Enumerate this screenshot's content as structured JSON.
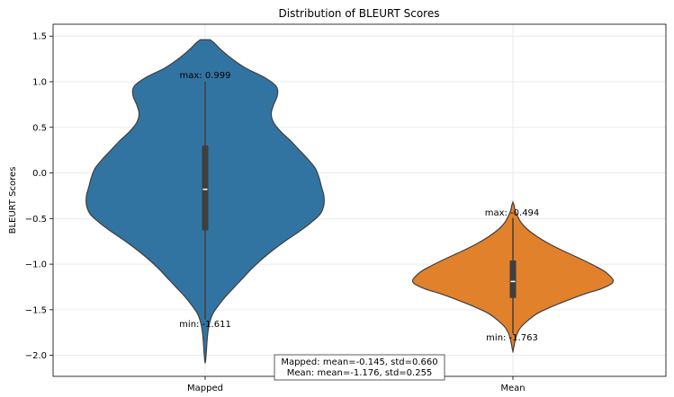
{
  "chart_data": {
    "type": "violin",
    "title": "Distribution of BLEURT Scores",
    "xlabel": "",
    "ylabel": "BLEURT Scores",
    "ylim": [
      -2.23,
      1.63
    ],
    "yticks": [
      -2.0,
      -1.5,
      -1.0,
      -0.5,
      0.0,
      0.5,
      1.0,
      1.5
    ],
    "ytick_labels": [
      "−2.0",
      "−1.5",
      "−1.0",
      "−0.5",
      "0.0",
      "0.5",
      "1.0",
      "1.5"
    ],
    "grid": true,
    "categories": [
      "Mapped",
      "Mean"
    ],
    "series": [
      {
        "name": "Mapped",
        "color": "#3274a1",
        "mean": -0.145,
        "std": 0.66,
        "min": -1.611,
        "max": 0.999,
        "median": -0.18,
        "q1": -0.63,
        "q3": 0.3,
        "kde_extent": [
          -2.08,
          1.46
        ],
        "density_profile": [
          [
            1.46,
            0.04
          ],
          [
            1.43,
            0.07
          ],
          [
            1.35,
            0.13
          ],
          [
            1.25,
            0.22
          ],
          [
            1.15,
            0.33
          ],
          [
            1.05,
            0.48
          ],
          [
            0.95,
            0.58
          ],
          [
            0.85,
            0.59
          ],
          [
            0.75,
            0.56
          ],
          [
            0.65,
            0.54
          ],
          [
            0.55,
            0.56
          ],
          [
            0.45,
            0.62
          ],
          [
            0.35,
            0.7
          ],
          [
            0.25,
            0.77
          ],
          [
            0.15,
            0.84
          ],
          [
            0.05,
            0.9
          ],
          [
            -0.05,
            0.93
          ],
          [
            -0.15,
            0.95
          ],
          [
            -0.25,
            0.97
          ],
          [
            -0.35,
            0.97
          ],
          [
            -0.45,
            0.94
          ],
          [
            -0.55,
            0.86
          ],
          [
            -0.65,
            0.76
          ],
          [
            -0.75,
            0.65
          ],
          [
            -0.85,
            0.55
          ],
          [
            -0.95,
            0.46
          ],
          [
            -1.05,
            0.38
          ],
          [
            -1.15,
            0.31
          ],
          [
            -1.25,
            0.24
          ],
          [
            -1.35,
            0.17
          ],
          [
            -1.45,
            0.11
          ],
          [
            -1.55,
            0.06
          ],
          [
            -1.65,
            0.035
          ],
          [
            -1.75,
            0.022
          ],
          [
            -1.85,
            0.015
          ],
          [
            -1.95,
            0.01
          ],
          [
            -2.05,
            0.004
          ],
          [
            -2.08,
            0.0
          ]
        ]
      },
      {
        "name": "Mean",
        "color": "#e1812c",
        "mean": -1.176,
        "std": 0.255,
        "min": -1.763,
        "max": -0.494,
        "median": -1.19,
        "q1": -1.37,
        "q3": -0.96,
        "kde_extent": [
          -1.96,
          -0.32
        ],
        "density_profile": [
          [
            -0.32,
            0.0
          ],
          [
            -0.36,
            0.01
          ],
          [
            -0.42,
            0.02
          ],
          [
            -0.48,
            0.04
          ],
          [
            -0.55,
            0.07
          ],
          [
            -0.62,
            0.12
          ],
          [
            -0.7,
            0.2
          ],
          [
            -0.78,
            0.3
          ],
          [
            -0.86,
            0.42
          ],
          [
            -0.94,
            0.55
          ],
          [
            -1.02,
            0.67
          ],
          [
            -1.08,
            0.75
          ],
          [
            -1.14,
            0.8
          ],
          [
            -1.18,
            0.82
          ],
          [
            -1.22,
            0.8
          ],
          [
            -1.27,
            0.72
          ],
          [
            -1.33,
            0.58
          ],
          [
            -1.4,
            0.44
          ],
          [
            -1.47,
            0.31
          ],
          [
            -1.54,
            0.2
          ],
          [
            -1.62,
            0.12
          ],
          [
            -1.7,
            0.06
          ],
          [
            -1.78,
            0.03
          ],
          [
            -1.86,
            0.015
          ],
          [
            -1.92,
            0.006
          ],
          [
            -1.96,
            0.0
          ]
        ]
      }
    ],
    "annotations": {
      "Mapped": {
        "max_label": "max: 0.999",
        "min_label": "min: -1.611"
      },
      "Mean": {
        "max_label": "max: -0.494",
        "min_label": "min: -1.763"
      }
    },
    "summary_box": {
      "line1": "Mapped: mean=-0.145, std=0.660",
      "line2": "Mean: mean=-1.176, std=0.255"
    }
  }
}
